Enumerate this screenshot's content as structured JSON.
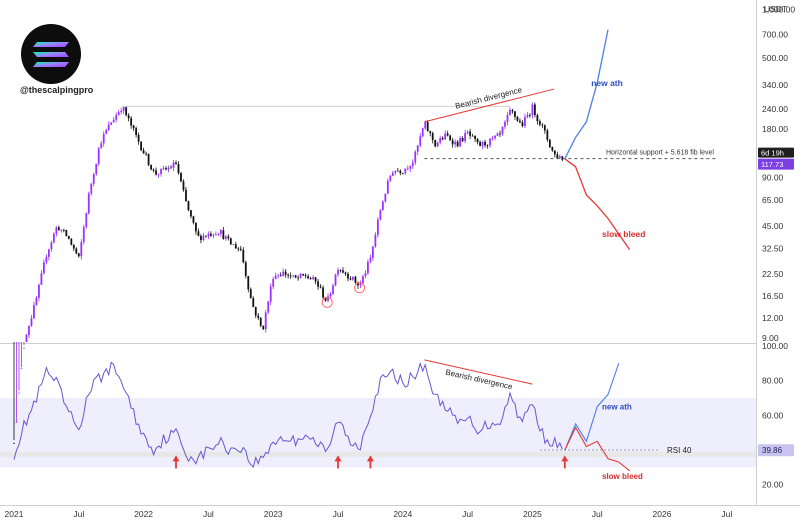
{
  "brand": {
    "handle": "@thescalpingpro",
    "logo_colors": [
      "#00FFA3",
      "#9945FF"
    ]
  },
  "colors": {
    "up_candle": "#9b30ff",
    "down_candle": "#111111",
    "rsi_line": "#6a55d0",
    "bullish_projection": "#4d7fe6",
    "bearish_projection": "#e53935",
    "annotation_red": "#e53935",
    "price_badge": "#7b3fe4",
    "rsi_badge": "#c9c3ef"
  },
  "chart_data": [
    {
      "type": "candlestick",
      "series_name": "",
      "y_axis_unit": "USDT",
      "y_scale": "log",
      "ylim": [
        8.5,
        1100
      ],
      "x_range": [
        "2021-01",
        "2026-07"
      ],
      "x_tick_labels": [
        "2021",
        "Jul",
        "2022",
        "Jul",
        "2023",
        "Jul",
        "2024",
        "Jul",
        "2025",
        "Jul",
        "2026",
        "Jul"
      ],
      "y_tick_labels": [
        "1,000.00",
        "700.00",
        "500.00",
        "340.00",
        "240.00",
        "180.00",
        "130.00",
        "90.00",
        "65.00",
        "45.00",
        "32.50",
        "22.50",
        "16.50",
        "12.00",
        "9.00"
      ],
      "y_tick_values": [
        1000,
        700,
        500,
        340,
        240,
        180,
        130,
        90,
        65,
        45,
        32.5,
        22.5,
        16.5,
        12,
        9
      ],
      "price_path": [
        [
          "2021-01",
          2
        ],
        [
          "2021-02",
          9
        ],
        [
          "2021-03",
          15
        ],
        [
          "2021-04",
          30
        ],
        [
          "2021-05",
          45
        ],
        [
          "2021-06",
          38
        ],
        [
          "2021-07",
          28
        ],
        [
          "2021-08",
          75
        ],
        [
          "2021-09",
          150
        ],
        [
          "2021-10",
          200
        ],
        [
          "2021-11",
          250
        ],
        [
          "2021-12",
          180
        ],
        [
          "2022-01",
          130
        ],
        [
          "2022-02",
          95
        ],
        [
          "2022-03",
          100
        ],
        [
          "2022-04",
          110
        ],
        [
          "2022-05",
          60
        ],
        [
          "2022-06",
          38
        ],
        [
          "2022-07",
          40
        ],
        [
          "2022-08",
          42
        ],
        [
          "2022-09",
          35
        ],
        [
          "2022-10",
          32
        ],
        [
          "2022-11",
          15
        ],
        [
          "2022-12",
          10
        ],
        [
          "2023-01",
          22
        ],
        [
          "2023-02",
          23
        ],
        [
          "2023-03",
          21
        ],
        [
          "2023-04",
          22
        ],
        [
          "2023-05",
          20
        ],
        [
          "2023-06",
          15
        ],
        [
          "2023-07",
          25
        ],
        [
          "2023-08",
          22
        ],
        [
          "2023-09",
          19
        ],
        [
          "2023-10",
          28
        ],
        [
          "2023-11",
          60
        ],
        [
          "2023-12",
          100
        ],
        [
          "2024-01",
          100
        ],
        [
          "2024-02",
          115
        ],
        [
          "2024-03",
          195
        ],
        [
          "2024-04",
          145
        ],
        [
          "2024-05",
          165
        ],
        [
          "2024-06",
          145
        ],
        [
          "2024-07",
          170
        ],
        [
          "2024-08",
          142
        ],
        [
          "2024-09",
          150
        ],
        [
          "2024-10",
          165
        ],
        [
          "2024-11",
          235
        ],
        [
          "2024-12",
          190
        ],
        [
          "2025-01",
          245
        ],
        [
          "2025-02",
          180
        ],
        [
          "2025-03",
          125
        ],
        [
          "2025-04",
          117.73
        ]
      ],
      "candle_colors": [
        "#9b30ff",
        "#111111"
      ],
      "current_price": "117.73",
      "timer_label": "6d 19h",
      "projections": [
        {
          "label": "new ath",
          "color": "#4d7fe6",
          "points": [
            [
              "2025-04",
              117.73
            ],
            [
              "2025-05",
              160
            ],
            [
              "2025-06",
              200
            ],
            [
              "2025-07",
              350
            ],
            [
              "2025-08",
              750
            ]
          ]
        },
        {
          "label": "slow bleed",
          "color": "#e53935",
          "points": [
            [
              "2025-04",
              117.73
            ],
            [
              "2025-05",
              105
            ],
            [
              "2025-06",
              70
            ],
            [
              "2025-07",
              60
            ],
            [
              "2025-08",
              50
            ],
            [
              "2025-09",
              40
            ],
            [
              "2025-10",
              32
            ]
          ]
        }
      ],
      "horizontal_lines": [
        {
          "value": 250,
          "from": "2021-11",
          "to": "2024-11",
          "style": "solid",
          "color": "#cccccc"
        },
        {
          "value": 118,
          "from": "2024-03",
          "to": "2026-06",
          "style": "dashed",
          "color": "#555555",
          "label": "Horizontal support + 5.618 fib level"
        }
      ],
      "annotations": [
        {
          "text": "Bearish divergence",
          "from": [
            "2024-03",
            200
          ],
          "to": [
            "2025-03",
            320
          ],
          "color": "#e53935"
        },
        {
          "text": "new ath",
          "at": [
            "2025-07",
            350
          ],
          "color": "#2b4fbf"
        },
        {
          "text": "slow bleed",
          "at": [
            "2025-08",
            40
          ],
          "color": "#d32f2f"
        }
      ],
      "markers": [
        {
          "shape": "circle",
          "at": [
            "2023-06",
            15
          ],
          "color": "#ff6b6b"
        },
        {
          "shape": "circle",
          "at": [
            "2023-09",
            18.5
          ],
          "color": "#ff6b6b"
        }
      ]
    },
    {
      "type": "line",
      "series_name": "",
      "ylim": [
        10,
        100
      ],
      "y_tick_labels": [
        "100.00",
        "80.00",
        "60.00",
        "40.00",
        "20.00"
      ],
      "y_tick_values": [
        100,
        80,
        60,
        40,
        20
      ],
      "x_tick_labels": [
        "2021",
        "Jul",
        "2022",
        "Jul",
        "2023",
        "Jul",
        "2024",
        "Jul",
        "2025",
        "Jul",
        "2026",
        "Jul"
      ],
      "bands": [
        {
          "from": 30,
          "to": 70,
          "color": "#eeeefc"
        },
        {
          "from": 36,
          "to": 39,
          "color": "#e8e8e8"
        }
      ],
      "rsi_path": [
        [
          "2021-01",
          38
        ],
        [
          "2021-02",
          55
        ],
        [
          "2021-03",
          68
        ],
        [
          "2021-04",
          85
        ],
        [
          "2021-05",
          78
        ],
        [
          "2021-06",
          62
        ],
        [
          "2021-07",
          52
        ],
        [
          "2021-08",
          75
        ],
        [
          "2021-09",
          82
        ],
        [
          "2021-10",
          88
        ],
        [
          "2021-11",
          80
        ],
        [
          "2021-12",
          62
        ],
        [
          "2022-01",
          48
        ],
        [
          "2022-02",
          40
        ],
        [
          "2022-03",
          47
        ],
        [
          "2022-04",
          50
        ],
        [
          "2022-05",
          37
        ],
        [
          "2022-06",
          35
        ],
        [
          "2022-07",
          40
        ],
        [
          "2022-08",
          45
        ],
        [
          "2022-09",
          40
        ],
        [
          "2022-10",
          42
        ],
        [
          "2022-11",
          32
        ],
        [
          "2022-12",
          35
        ],
        [
          "2023-01",
          45
        ],
        [
          "2023-02",
          47
        ],
        [
          "2023-03",
          45
        ],
        [
          "2023-04",
          50
        ],
        [
          "2023-05",
          44
        ],
        [
          "2023-06",
          38
        ],
        [
          "2023-07",
          58
        ],
        [
          "2023-08",
          45
        ],
        [
          "2023-09",
          42
        ],
        [
          "2023-10",
          62
        ],
        [
          "2023-11",
          80
        ],
        [
          "2023-12",
          84
        ],
        [
          "2024-01",
          79
        ],
        [
          "2024-02",
          82
        ],
        [
          "2024-03",
          90
        ],
        [
          "2024-04",
          70
        ],
        [
          "2024-05",
          66
        ],
        [
          "2024-06",
          55
        ],
        [
          "2024-07",
          58
        ],
        [
          "2024-08",
          52
        ],
        [
          "2024-09",
          55
        ],
        [
          "2024-10",
          57
        ],
        [
          "2024-11",
          72
        ],
        [
          "2024-12",
          56
        ],
        [
          "2025-01",
          67
        ],
        [
          "2025-02",
          48
        ],
        [
          "2025-03",
          44
        ],
        [
          "2025-04",
          39.86
        ]
      ],
      "current_value": "39.86",
      "rsi_level_label": "RSI 40",
      "rsi_level_value": 40,
      "projections": [
        {
          "label": "new ath",
          "color": "#4d7fe6",
          "points": [
            [
              "2025-04",
              39.86
            ],
            [
              "2025-05",
              55
            ],
            [
              "2025-06",
              45
            ],
            [
              "2025-07",
              65
            ],
            [
              "2025-08",
              72
            ],
            [
              "2025-09",
              90
            ]
          ]
        },
        {
          "label": "slow bleed",
          "color": "#e53935",
          "points": [
            [
              "2025-04",
              39.86
            ],
            [
              "2025-05",
              53
            ],
            [
              "2025-06",
              42
            ],
            [
              "2025-07",
              45
            ],
            [
              "2025-08",
              35
            ],
            [
              "2025-09",
              33
            ],
            [
              "2025-10",
              28
            ]
          ]
        }
      ],
      "annotations": [
        {
          "text": "Bearish divergence",
          "from": [
            "2024-03",
            92
          ],
          "to": [
            "2025-01",
            78
          ],
          "color": "#e53935"
        },
        {
          "text": "new ath",
          "at": [
            "2025-08",
            65
          ],
          "color": "#2b4fbf"
        },
        {
          "text": "slow bleed",
          "at": [
            "2025-08",
            25
          ],
          "color": "#d32f2f"
        }
      ],
      "markers": [
        {
          "shape": "up-arrow",
          "at": "2022-04",
          "color": "#e53935"
        },
        {
          "shape": "up-arrow",
          "at": "2023-07",
          "color": "#e53935"
        },
        {
          "shape": "up-arrow",
          "at": "2023-10",
          "color": "#e53935"
        },
        {
          "shape": "up-arrow",
          "at": "2025-04",
          "color": "#e53935"
        }
      ]
    }
  ]
}
